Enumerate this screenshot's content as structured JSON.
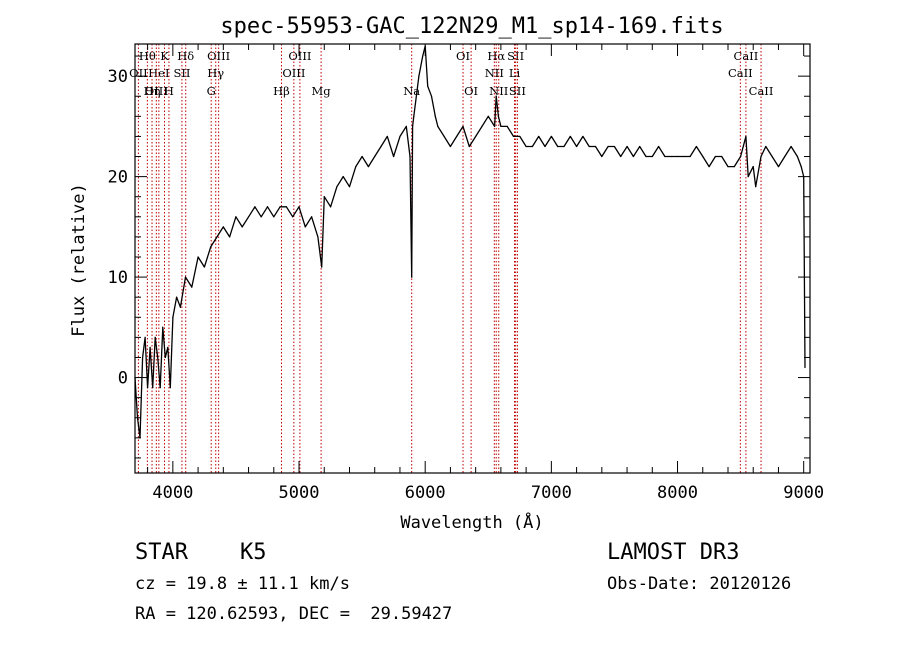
{
  "chart_data": {
    "type": "line",
    "title": "spec-55953-GAC_122N29_M1_sp14-169.fits",
    "xlabel": "Wavelength (Å)",
    "ylabel": "Flux (relative)",
    "xlim": [
      3700,
      9050
    ],
    "ylim": [
      -9.5,
      33.2
    ],
    "xticks": [
      4000,
      5000,
      6000,
      7000,
      8000,
      9000
    ],
    "yticks": [
      0,
      10,
      20,
      30
    ],
    "series": [
      {
        "name": "spectrum",
        "x": [
          3700,
          3720,
          3740,
          3760,
          3780,
          3800,
          3820,
          3840,
          3860,
          3880,
          3900,
          3920,
          3940,
          3960,
          3980,
          4000,
          4030,
          4060,
          4100,
          4150,
          4200,
          4250,
          4300,
          4350,
          4400,
          4450,
          4500,
          4550,
          4600,
          4650,
          4700,
          4750,
          4800,
          4850,
          4900,
          4950,
          5000,
          5050,
          5100,
          5150,
          5180,
          5200,
          5250,
          5300,
          5350,
          5400,
          5450,
          5500,
          5550,
          5600,
          5650,
          5700,
          5750,
          5800,
          5850,
          5880,
          5893,
          5900,
          5910,
          5950,
          5980,
          6000,
          6020,
          6050,
          6080,
          6100,
          6150,
          6200,
          6250,
          6300,
          6350,
          6400,
          6450,
          6500,
          6550,
          6563,
          6580,
          6600,
          6650,
          6700,
          6750,
          6800,
          6850,
          6900,
          6950,
          7000,
          7050,
          7100,
          7150,
          7200,
          7250,
          7300,
          7350,
          7400,
          7450,
          7500,
          7550,
          7600,
          7650,
          7700,
          7750,
          7800,
          7850,
          7900,
          7950,
          8000,
          8050,
          8100,
          8150,
          8200,
          8250,
          8300,
          8350,
          8400,
          8450,
          8500,
          8542,
          8560,
          8600,
          8620,
          8662,
          8700,
          8750,
          8800,
          8850,
          8900,
          8950,
          8980,
          9000,
          9010
        ],
        "values": [
          0,
          -4,
          -6,
          2,
          4,
          -1,
          3,
          -1,
          4,
          2,
          -1,
          5,
          2,
          3,
          -1,
          6,
          8,
          7,
          10,
          9,
          12,
          11,
          13,
          14,
          15,
          14,
          16,
          15,
          16,
          17,
          16,
          17,
          16,
          17,
          17,
          16,
          17,
          15,
          16,
          14,
          11,
          18,
          17,
          19,
          20,
          19,
          21,
          22,
          21,
          22,
          23,
          24,
          22,
          24,
          25,
          22,
          10,
          25,
          26,
          30,
          32,
          33,
          29,
          28,
          26,
          25,
          24,
          23,
          24,
          25,
          23,
          24,
          25,
          26,
          25,
          28,
          26,
          25,
          25,
          24,
          24,
          23,
          23,
          24,
          23,
          24,
          23,
          23,
          24,
          23,
          24,
          23,
          23,
          22,
          23,
          23,
          22,
          23,
          22,
          23,
          22,
          22,
          23,
          22,
          22,
          22,
          22,
          22,
          23,
          22,
          21,
          22,
          22,
          21,
          21,
          22,
          24,
          20,
          21,
          19,
          22,
          23,
          22,
          21,
          22,
          23,
          22,
          21,
          20,
          1
        ]
      }
    ],
    "spectral_lines": [
      {
        "label": "Hθ",
        "wave": 3798,
        "row": 0
      },
      {
        "label": "K",
        "wave": 3934,
        "row": 0
      },
      {
        "label": "Hδ",
        "wave": 4102,
        "row": 0
      },
      {
        "label": "OIII",
        "wave": 4363,
        "row": 0
      },
      {
        "label": "OIII",
        "wave": 5007,
        "row": 0
      },
      {
        "label": "OI",
        "wave": 6300,
        "row": 0
      },
      {
        "label": "Hα",
        "wave": 6563,
        "row": 0
      },
      {
        "label": "SII",
        "wave": 6717,
        "row": 0
      },
      {
        "label": "CaII",
        "wave": 8542,
        "row": 0
      },
      {
        "label": "OII",
        "wave": 3727,
        "row": 1
      },
      {
        "label": "HeI",
        "wave": 3889,
        "row": 1
      },
      {
        "label": "SII",
        "wave": 4072,
        "row": 1
      },
      {
        "label": "Hγ",
        "wave": 4340,
        "row": 1
      },
      {
        "label": "OIII",
        "wave": 4959,
        "row": 1
      },
      {
        "label": "NII",
        "wave": 6548,
        "row": 1
      },
      {
        "label": "Li",
        "wave": 6708,
        "row": 1
      },
      {
        "label": "CaII",
        "wave": 8498,
        "row": 1
      },
      {
        "label": "OIII",
        "wave": 3869,
        "row": 2
      },
      {
        "label": "Hη",
        "wave": 3835,
        "row": 2
      },
      {
        "label": "H",
        "wave": 3969,
        "row": 2
      },
      {
        "label": "G",
        "wave": 4304,
        "row": 2
      },
      {
        "label": "Hβ",
        "wave": 4861,
        "row": 2
      },
      {
        "label": "Mg",
        "wave": 5175,
        "row": 2
      },
      {
        "label": "Na",
        "wave": 5893,
        "row": 2
      },
      {
        "label": "OI",
        "wave": 6364,
        "row": 2
      },
      {
        "label": "NII",
        "wave": 6583,
        "row": 2
      },
      {
        "label": "SII",
        "wave": 6731,
        "row": 2
      },
      {
        "label": "CaII",
        "wave": 8662,
        "row": 2
      }
    ]
  },
  "info": {
    "class": "STAR",
    "subclass": "K5",
    "redshift": "cz = 19.8 ± 11.1 km/s",
    "coords": "RA = 120.62593, DEC =  29.59427",
    "survey": "LAMOST DR3",
    "obs_date": "Obs-Date: 20120126"
  }
}
